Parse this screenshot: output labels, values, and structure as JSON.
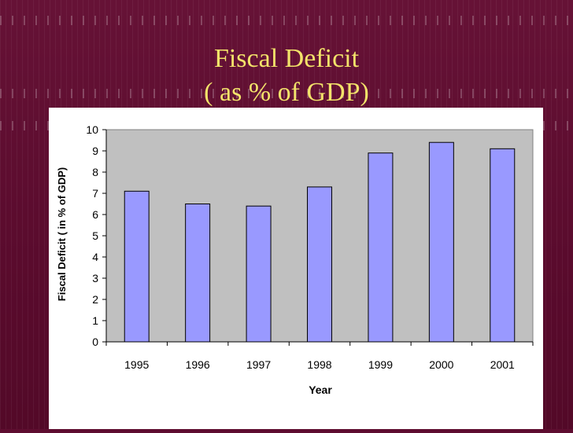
{
  "slide": {
    "title_line1": "Fiscal Deficit",
    "title_line2": "( as % of GDP)",
    "title_color": "#f3e36a",
    "background_color": "#5e0d30"
  },
  "chart_data": {
    "type": "bar",
    "categories": [
      "1995",
      "1996",
      "1997",
      "1998",
      "1999",
      "2000",
      "2001"
    ],
    "values": [
      7.1,
      6.5,
      6.4,
      7.3,
      8.9,
      9.4,
      9.1
    ],
    "title": "",
    "xlabel": "Year",
    "ylabel": "Fiscal Deficit ( in % of GDP)",
    "ylim": [
      0,
      10
    ],
    "yticks": [
      "0",
      "1",
      "2",
      "3",
      "4",
      "5",
      "6",
      "7",
      "8",
      "9",
      "10"
    ],
    "grid": false,
    "legend": "none",
    "bar_color": "#9999ff",
    "plot_background": "#c0c0c0"
  }
}
